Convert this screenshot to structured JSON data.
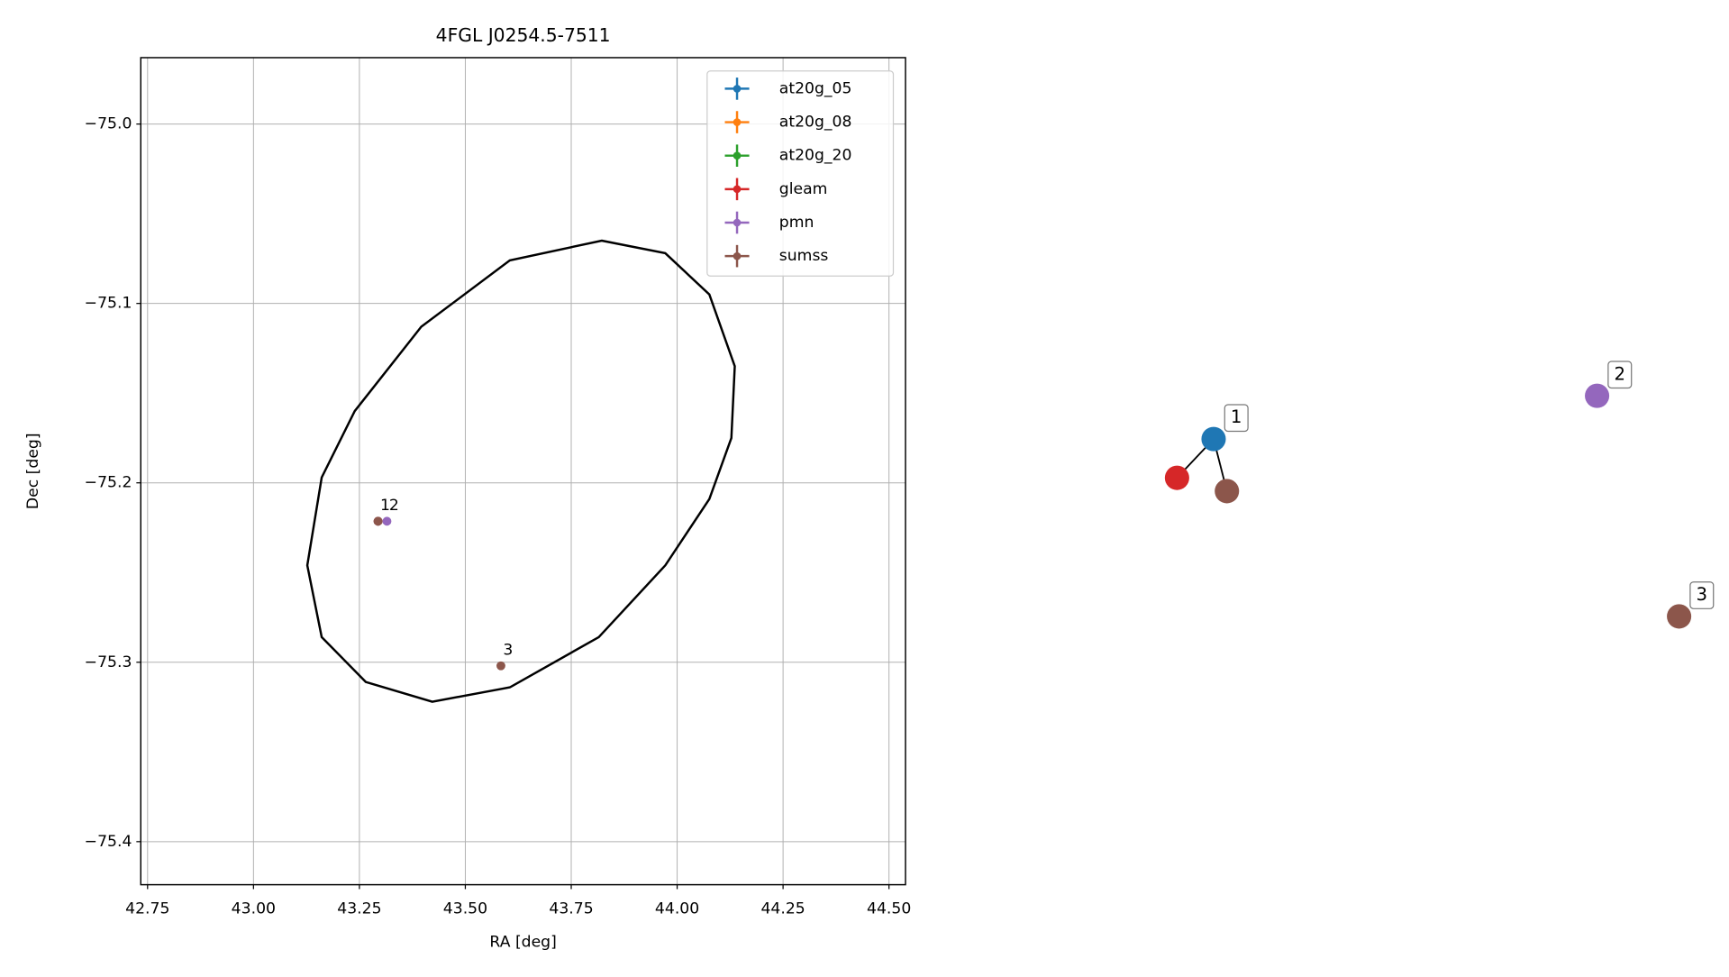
{
  "chart_data": [
    {
      "type": "scatter",
      "title": "4FGL J0254.5-7511",
      "xlabel": "RA [deg]",
      "ylabel": "Dec [deg]",
      "xlim": [
        42.734,
        44.539
      ],
      "ylim": [
        -75.424,
        -74.963
      ],
      "grid": true,
      "xticks": [
        42.75,
        {
          "value": 43,
          "label": "43.00"
        },
        43.25,
        {
          "value": 43.5,
          "label": "43.50"
        },
        43.75,
        {
          "value": 44,
          "label": "44.00"
        },
        44.25,
        {
          "value": 44.5,
          "label": "44.50"
        }
      ],
      "yticks": [
        {
          "value": -75.0,
          "label": "−75.0"
        },
        {
          "value": -75.1,
          "label": "−75.1"
        },
        {
          "value": -75.2,
          "label": "−75.2"
        },
        {
          "value": -75.3,
          "label": "−75.3"
        },
        {
          "value": -75.4,
          "label": "−75.4"
        }
      ],
      "legend": "upper right",
      "series": [
        {
          "name": "at20g_05",
          "color": "#1f77b4",
          "x": [
            43.294
          ],
          "y": [
            -75.2214
          ],
          "labels": [
            null
          ]
        },
        {
          "name": "at20g_08",
          "color": "#ff7f0e",
          "x": [],
          "y": [],
          "labels": []
        },
        {
          "name": "at20g_20",
          "color": "#2ca02c",
          "x": [],
          "y": [],
          "labels": []
        },
        {
          "name": "gleam",
          "color": "#d62728",
          "x": [
            43.294
          ],
          "y": [
            -75.2214
          ],
          "labels": [
            null
          ]
        },
        {
          "name": "pmn",
          "color": "#9467bd",
          "x": [
            43.315
          ],
          "y": [
            -75.2214
          ],
          "labels": [
            "2"
          ]
        },
        {
          "name": "sumss",
          "color": "#8c564b",
          "x": [
            43.294,
            43.584
          ],
          "y": [
            -75.2214,
            -75.302
          ],
          "labels": [
            "1",
            "3"
          ]
        }
      ],
      "ellipse": {
        "color": "#000000",
        "x": [
          43.822,
          43.972,
          44.076,
          44.136,
          44.128,
          44.076,
          43.972,
          43.815,
          43.605,
          43.422,
          43.265,
          43.161,
          43.127,
          43.161,
          43.239,
          43.396,
          43.605
        ],
        "y": [
          -75.065,
          -75.072,
          -75.095,
          -75.135,
          -75.175,
          -75.209,
          -75.246,
          -75.286,
          -75.314,
          -75.322,
          -75.311,
          -75.286,
          -75.246,
          -75.197,
          -75.16,
          -75.113,
          -75.076
        ]
      }
    },
    {
      "type": "network",
      "nodes": [
        {
          "color": "#1f77b4",
          "label": "1"
        },
        {
          "color": "#d62728"
        },
        {
          "color": "#8c564b"
        },
        {
          "color": "#9467bd",
          "label": "2"
        },
        {
          "color": "#8c564b",
          "label": "3"
        }
      ],
      "edges": [
        [
          0,
          1
        ],
        [
          0,
          2
        ]
      ]
    }
  ]
}
